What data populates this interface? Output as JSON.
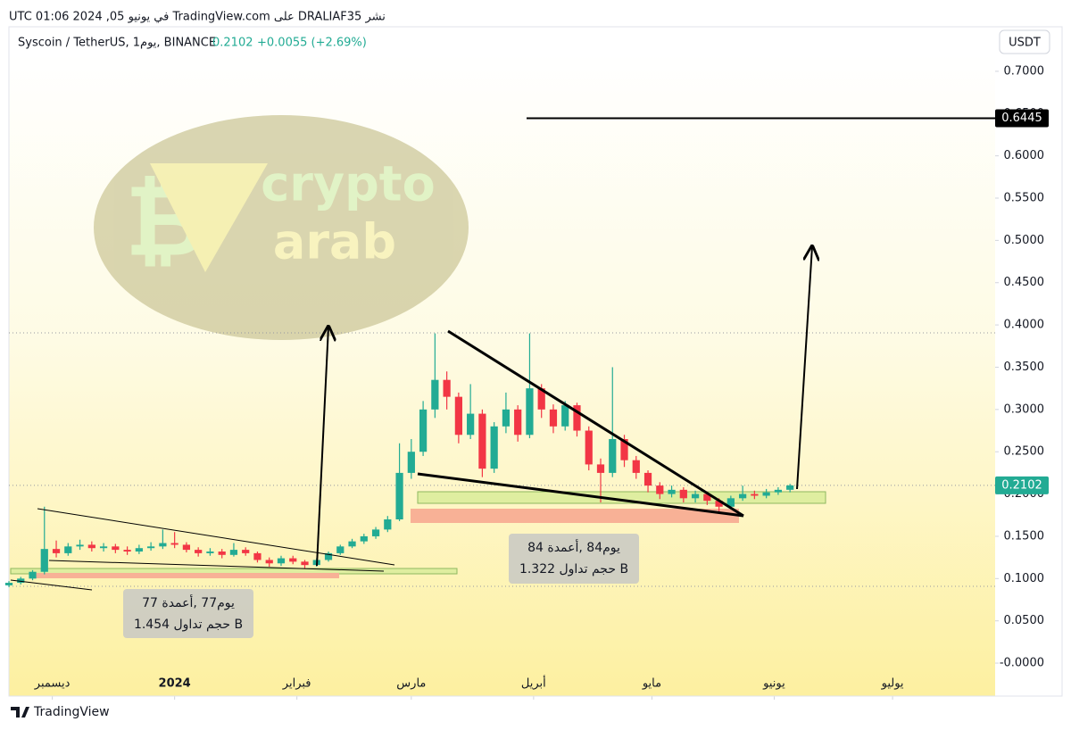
{
  "header": {
    "published": "نشر DRALIAF35 على TradingView.com في يونيو 05, 2024 01:06 UTC",
    "symbol": "Syscoin / TetherUS, 1يوم, BINANCE",
    "change": "+0.0055 (+2.69%)",
    "currency": "USDT"
  },
  "watermark": {
    "line1": "crypto",
    "line2": "arab"
  },
  "annotations": [
    {
      "line1": "يوم77 ,أعمدة 77",
      "line2": "1.454 حجم تداول B"
    },
    {
      "line1": "يوم84 ,أعمدة 84",
      "line2": "1.322 حجم تداول B"
    }
  ],
  "footer": "TradingView",
  "chart_data": {
    "type": "candlestick",
    "up_color": "#22ab94",
    "down_color": "#f23645",
    "last_price": 0.2102,
    "target_price": 0.6445,
    "xlim": [
      -42,
      208
    ],
    "xticks": [
      {
        "value": -31,
        "label": "ديسمبر"
      },
      {
        "value": 0,
        "label": "2024"
      },
      {
        "value": 31,
        "label": "فبراير"
      },
      {
        "value": 60,
        "label": "مارس"
      },
      {
        "value": 91,
        "label": "أبريل"
      },
      {
        "value": 121,
        "label": "مايو"
      },
      {
        "value": 152,
        "label": "يونيو"
      },
      {
        "value": 182,
        "label": "يوليو"
      }
    ],
    "ylim": [
      -0.039,
      0.721
    ],
    "yticks": [
      {
        "value": 0,
        "label": "-0.0000"
      },
      {
        "value": 0.05,
        "label": "0.0500"
      },
      {
        "value": 0.1,
        "label": "0.1000"
      },
      {
        "value": 0.15,
        "label": "0.1500"
      },
      {
        "value": 0.2,
        "label": "0.2000"
      },
      {
        "value": 0.25,
        "label": "0.2500"
      },
      {
        "value": 0.3,
        "label": "0.3000"
      },
      {
        "value": 0.35,
        "label": "0.3500"
      },
      {
        "value": 0.4,
        "label": "0.4000"
      },
      {
        "value": 0.45,
        "label": "0.4500"
      },
      {
        "value": 0.5,
        "label": "0.5000"
      },
      {
        "value": 0.55,
        "label": "0.5500"
      },
      {
        "value": 0.6,
        "label": "0.6000"
      },
      {
        "value": 0.65,
        "label": "0.6500"
      },
      {
        "value": 0.7,
        "label": "0.7000"
      }
    ],
    "candles": {
      "x": [
        -42,
        -39,
        -36,
        -33,
        -30,
        -27,
        -24,
        -21,
        -18,
        -15,
        -12,
        -9,
        -6,
        -3,
        0,
        3,
        6,
        9,
        12,
        15,
        18,
        21,
        24,
        27,
        30,
        33,
        36,
        39,
        42,
        45,
        48,
        51,
        54,
        57,
        60,
        63,
        66,
        69,
        72,
        75,
        78,
        81,
        84,
        87,
        90,
        93,
        96,
        99,
        102,
        105,
        108,
        111,
        114,
        117,
        120,
        123,
        126,
        129,
        132,
        135,
        138,
        141,
        144,
        147,
        150,
        153,
        156
      ],
      "open": [
        0.092,
        0.095,
        0.1,
        0.108,
        0.135,
        0.13,
        0.138,
        0.14,
        0.136,
        0.138,
        0.134,
        0.132,
        0.136,
        0.138,
        0.142,
        0.14,
        0.134,
        0.13,
        0.132,
        0.128,
        0.134,
        0.13,
        0.122,
        0.118,
        0.124,
        0.12,
        0.116,
        0.122,
        0.13,
        0.138,
        0.144,
        0.15,
        0.158,
        0.17,
        0.225,
        0.25,
        0.3,
        0.335,
        0.315,
        0.27,
        0.295,
        0.23,
        0.28,
        0.3,
        0.27,
        0.325,
        0.3,
        0.28,
        0.305,
        0.275,
        0.235,
        0.225,
        0.265,
        0.24,
        0.225,
        0.21,
        0.2,
        0.205,
        0.195,
        0.2,
        0.192,
        0.185,
        0.195,
        0.2,
        0.198,
        0.202,
        0.205
      ],
      "high": [
        0.097,
        0.102,
        0.11,
        0.185,
        0.145,
        0.142,
        0.146,
        0.144,
        0.142,
        0.141,
        0.138,
        0.14,
        0.143,
        0.158,
        0.155,
        0.143,
        0.137,
        0.136,
        0.135,
        0.142,
        0.137,
        0.132,
        0.125,
        0.127,
        0.127,
        0.122,
        0.124,
        0.132,
        0.14,
        0.147,
        0.153,
        0.161,
        0.174,
        0.26,
        0.265,
        0.31,
        0.39,
        0.345,
        0.32,
        0.33,
        0.3,
        0.285,
        0.32,
        0.305,
        0.39,
        0.33,
        0.306,
        0.31,
        0.308,
        0.28,
        0.242,
        0.35,
        0.27,
        0.245,
        0.228,
        0.214,
        0.21,
        0.208,
        0.204,
        0.203,
        0.195,
        0.198,
        0.21,
        0.204,
        0.206,
        0.208,
        0.212
      ],
      "low": [
        0.09,
        0.093,
        0.098,
        0.105,
        0.125,
        0.127,
        0.134,
        0.132,
        0.132,
        0.13,
        0.128,
        0.129,
        0.133,
        0.135,
        0.136,
        0.131,
        0.126,
        0.127,
        0.124,
        0.126,
        0.127,
        0.119,
        0.114,
        0.115,
        0.117,
        0.112,
        0.114,
        0.12,
        0.128,
        0.136,
        0.141,
        0.147,
        0.155,
        0.168,
        0.218,
        0.245,
        0.29,
        0.3,
        0.26,
        0.265,
        0.22,
        0.225,
        0.272,
        0.262,
        0.266,
        0.29,
        0.272,
        0.275,
        0.268,
        0.228,
        0.19,
        0.22,
        0.232,
        0.218,
        0.202,
        0.194,
        0.196,
        0.19,
        0.19,
        0.187,
        0.178,
        0.182,
        0.192,
        0.194,
        0.195,
        0.199,
        0.202
      ],
      "close": [
        0.095,
        0.1,
        0.108,
        0.135,
        0.13,
        0.138,
        0.14,
        0.136,
        0.138,
        0.134,
        0.132,
        0.136,
        0.138,
        0.142,
        0.14,
        0.134,
        0.13,
        0.132,
        0.128,
        0.134,
        0.13,
        0.122,
        0.118,
        0.124,
        0.12,
        0.116,
        0.122,
        0.13,
        0.138,
        0.144,
        0.15,
        0.158,
        0.17,
        0.225,
        0.25,
        0.3,
        0.335,
        0.315,
        0.27,
        0.295,
        0.23,
        0.28,
        0.3,
        0.27,
        0.325,
        0.3,
        0.28,
        0.305,
        0.275,
        0.235,
        0.225,
        0.265,
        0.24,
        0.225,
        0.21,
        0.2,
        0.205,
        0.195,
        0.2,
        0.192,
        0.185,
        0.195,
        0.2,
        0.198,
        0.202,
        0.205,
        0.2102
      ]
    }
  }
}
